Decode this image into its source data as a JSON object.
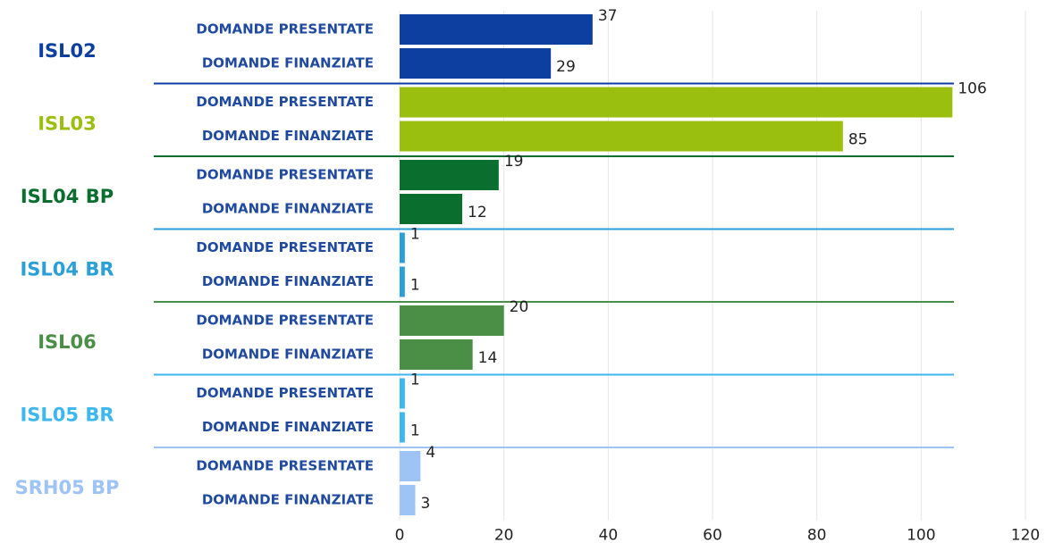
{
  "chart_data": {
    "type": "bar",
    "orientation": "horizontal",
    "categories": [
      "DOMANDE PRESENTATE",
      "DOMANDE FINANZIATE"
    ],
    "groups": [
      {
        "name": "ISL02",
        "color": "#0d3fa0",
        "values": [
          37,
          29
        ]
      },
      {
        "name": "ISL03",
        "color": "#9bbf0f",
        "values": [
          106,
          85
        ]
      },
      {
        "name": "ISL04 BP",
        "color": "#0a6e2e",
        "values": [
          19,
          12
        ]
      },
      {
        "name": "ISL04 BR",
        "color": "#2a9fd8",
        "values": [
          1,
          1
        ]
      },
      {
        "name": "ISL06",
        "color": "#4a8f45",
        "values": [
          20,
          14
        ]
      },
      {
        "name": "ISL05 BR",
        "color": "#3cb7ef",
        "values": [
          1,
          1
        ]
      },
      {
        "name": "SRH05 BP",
        "color": "#9ec3f5",
        "values": [
          4,
          3
        ]
      }
    ],
    "xlim": [
      0,
      120
    ],
    "xticks": [
      0,
      20,
      40,
      60,
      80,
      100,
      120
    ],
    "grid": true
  }
}
